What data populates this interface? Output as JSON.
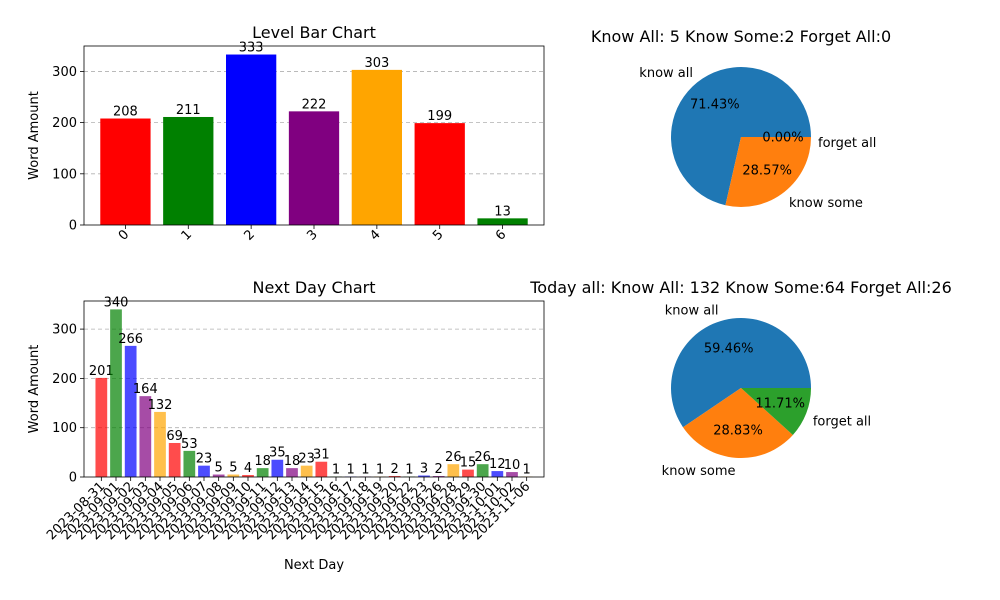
{
  "chart_data": [
    {
      "type": "bar",
      "title": "Level Bar Chart",
      "xlabel": "",
      "ylabel": "Word Amount",
      "categories": [
        "0",
        "1",
        "2",
        "3",
        "4",
        "5",
        "6"
      ],
      "values": [
        208,
        211,
        333,
        222,
        303,
        199,
        13
      ],
      "colors": [
        "#ff0000",
        "#008000",
        "#0000ff",
        "#800080",
        "#ffa500",
        "#ff0000",
        "#008000"
      ],
      "yticks": [
        0,
        100,
        200,
        300
      ],
      "ylim": [
        0,
        349.65
      ],
      "grid": true
    },
    {
      "type": "pie",
      "title": "Know All: 5    Know Some:2    Forget All:0",
      "labels": [
        "know all",
        "know some",
        "forget all"
      ],
      "values": [
        5,
        2,
        0
      ],
      "percent_labels": [
        "71.43%",
        "28.57%",
        "0.00%"
      ],
      "colors": [
        "#1f77b4",
        "#ff7f0e",
        "#2ca02c"
      ]
    },
    {
      "type": "bar",
      "title": "Next Day Chart",
      "xlabel": "Next Day",
      "ylabel": "Word Amount",
      "categories": [
        "2023-08-31",
        "2023-09-01",
        "2023-09-02",
        "2023-09-03",
        "2023-09-04",
        "2023-09-05",
        "2023-09-06",
        "2023-09-07",
        "2023-09-08",
        "2023-09-09",
        "2023-09-10",
        "2023-09-11",
        "2023-09-12",
        "2023-09-13",
        "2023-09-14",
        "2023-09-15",
        "2023-09-16",
        "2023-09-17",
        "2023-09-18",
        "2023-09-19",
        "2023-09-20",
        "2023-09-22",
        "2023-09-23",
        "2023-09-26",
        "2023-09-28",
        "2023-09-29",
        "2023-09-30",
        "2023-10-01",
        "2023-10-02",
        "2023-11-06"
      ],
      "values": [
        201,
        340,
        266,
        164,
        132,
        69,
        53,
        23,
        5,
        5,
        4,
        18,
        35,
        18,
        23,
        31,
        1,
        1,
        1,
        1,
        2,
        1,
        3,
        2,
        26,
        15,
        26,
        12,
        10,
        1
      ],
      "colors": [
        "#ff0000",
        "#008000",
        "#0000ff",
        "#800080",
        "#ffa500"
      ],
      "yticks": [
        0,
        100,
        200,
        300
      ],
      "ylim": [
        0,
        357
      ],
      "grid": true
    },
    {
      "type": "pie",
      "title": "Today all:  Know All: 132    Know Some:64    Forget All:26",
      "labels": [
        "know all",
        "know some",
        "forget all"
      ],
      "values": [
        132,
        64,
        26
      ],
      "percent_labels": [
        "59.46%",
        "28.83%",
        "11.71%"
      ],
      "colors": [
        "#1f77b4",
        "#ff7f0e",
        "#2ca02c"
      ]
    }
  ]
}
